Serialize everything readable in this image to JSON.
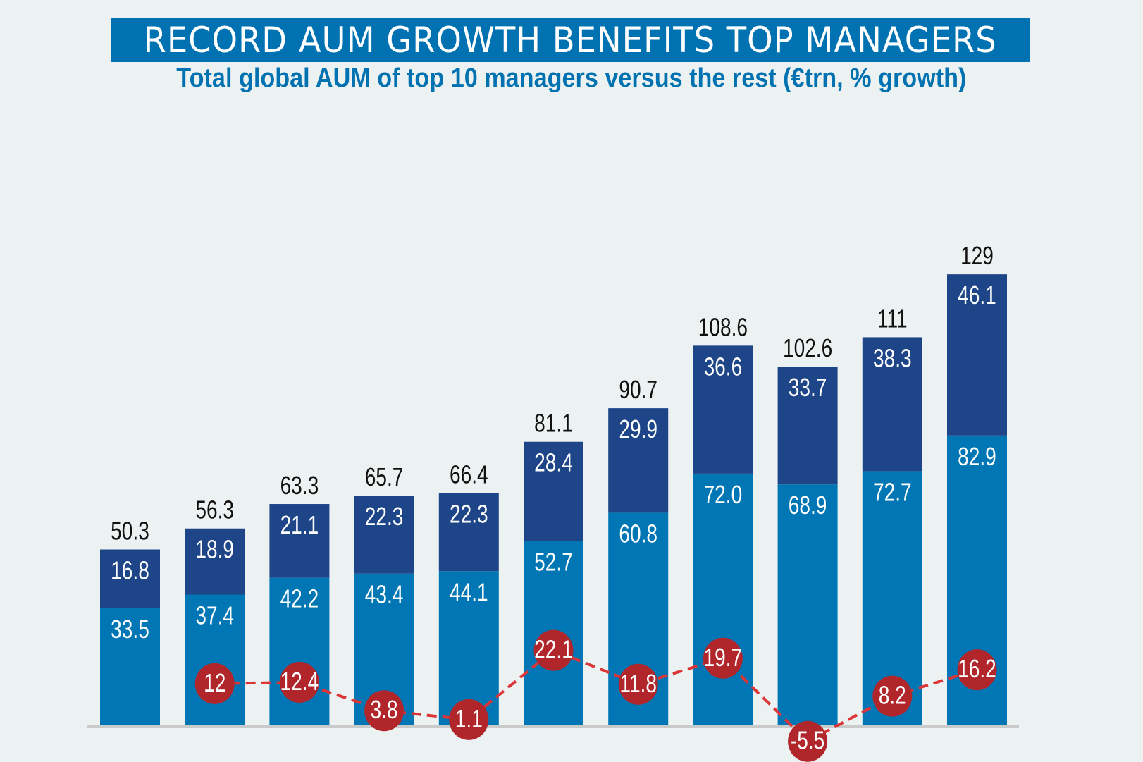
{
  "title": "RECORD AUM GROWTH BENEFITS TOP MANAGERS",
  "subtitle": "Total global AUM of top 10 managers versus the rest (€trn, % growth)",
  "chart_data": {
    "type": "bar",
    "stacked": true,
    "title": "RECORD AUM GROWTH BENEFITS TOP MANAGERS",
    "subtitle": "Total global AUM of top 10 managers versus the rest (€trn, % growth)",
    "xlabel": "",
    "ylabel": "",
    "grid": false,
    "legend": "none",
    "ylim": [
      0,
      135
    ],
    "series": [
      {
        "values": [
          33.5,
          37.4,
          42.2,
          43.4,
          44.1,
          52.7,
          60.8,
          72.0,
          68.9,
          72.7,
          82.9
        ],
        "labels": [
          "33.5",
          "37.4",
          "42.2",
          "43.4",
          "44.1",
          "52.7",
          "60.8",
          "72.0",
          "68.9",
          "72.7",
          "82.9"
        ],
        "color": "#0077b4"
      },
      {
        "values": [
          16.8,
          18.9,
          21.1,
          22.3,
          22.3,
          28.4,
          29.9,
          36.6,
          33.7,
          38.3,
          46.1
        ],
        "labels": [
          "16.8",
          "18.9",
          "21.1",
          "22.3",
          "22.3",
          "28.4",
          "29.9",
          "36.6",
          "33.7",
          "38.3",
          "46.1"
        ],
        "color": "#1d4588"
      }
    ],
    "totals": [
      "50.3",
      "56.3",
      "63.3",
      "65.7",
      "66.4",
      "81.1",
      "90.7",
      "108.6",
      "102.6",
      "111",
      "129"
    ],
    "growth": {
      "type": "line",
      "style": "dashed",
      "values": [
        null,
        12,
        12.4,
        3.8,
        1.1,
        22.1,
        11.8,
        19.7,
        -5.5,
        8.2,
        16.2
      ],
      "labels": [
        "",
        "12",
        "12.4",
        "3.8",
        "1.1",
        "22.1",
        "11.8",
        "19.7",
        "-5.5",
        "8.2",
        "16.2"
      ],
      "line_color": "#dc3538",
      "marker_color": "#b0262b"
    }
  }
}
